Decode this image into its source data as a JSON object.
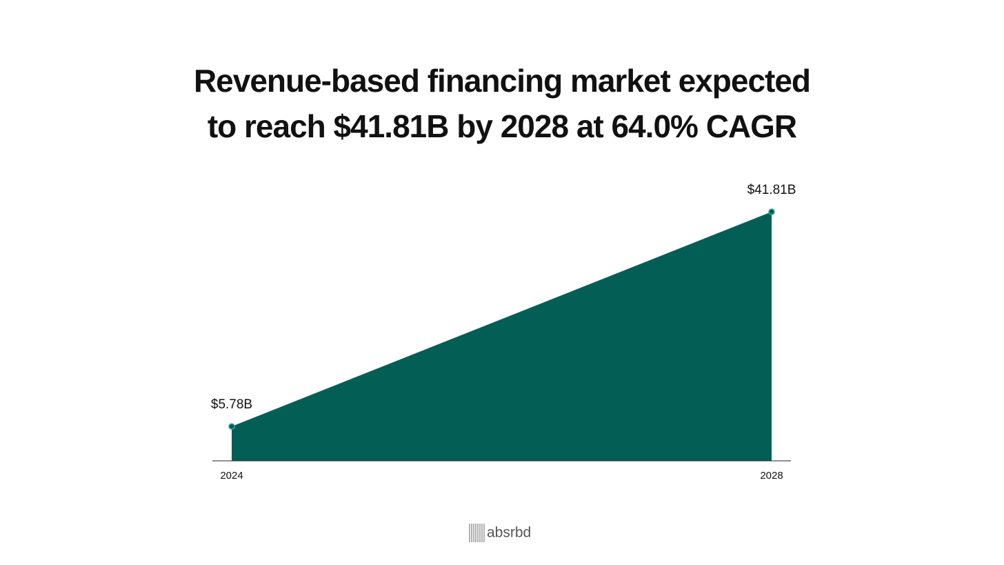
{
  "chart_data": {
    "type": "area",
    "title": "Revenue-based financing market expected to reach $41.81B by 2028 at 64.0% CAGR",
    "categories": [
      "2024",
      "2028"
    ],
    "values": [
      5.78,
      41.81
    ],
    "value_labels": [
      "$5.78B",
      "$41.81B"
    ],
    "color": "#035f55"
  },
  "footer": {
    "logo": "absrbd"
  }
}
